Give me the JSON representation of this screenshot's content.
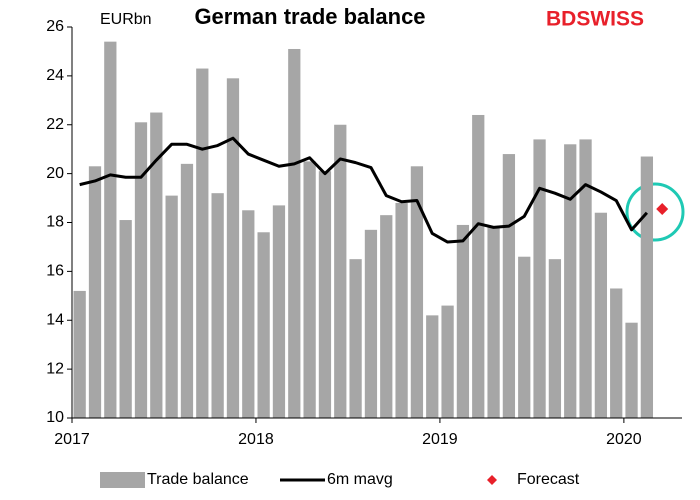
{
  "chart_data": {
    "type": "bar",
    "title": "German trade balance",
    "unit_label": "EURbn",
    "logo": "BDSWISS",
    "categories": [
      "2017",
      null,
      null,
      null,
      null,
      null,
      null,
      null,
      null,
      null,
      null,
      null,
      "2018",
      null,
      null,
      null,
      null,
      null,
      null,
      null,
      null,
      null,
      null,
      null,
      "2019",
      null,
      null,
      null,
      null,
      null,
      null,
      null,
      null,
      null,
      null,
      null,
      "2020",
      null,
      null
    ],
    "series": [
      {
        "name": "Trade balance",
        "type": "bar",
        "color": "#a6a6a6",
        "values": [
          15.2,
          20.3,
          25.4,
          18.1,
          22.1,
          22.5,
          19.1,
          20.4,
          24.3,
          19.2,
          23.9,
          18.5,
          17.6,
          18.7,
          25.1,
          20.5,
          20.1,
          22.0,
          16.5,
          17.7,
          18.3,
          18.8,
          20.3,
          14.2,
          14.6,
          17.9,
          22.4,
          17.8,
          20.8,
          16.6,
          21.4,
          16.5,
          21.2,
          21.4,
          18.4,
          15.3,
          13.9,
          20.7,
          null
        ]
      },
      {
        "name": "6m mavg",
        "type": "line",
        "color": "#000000",
        "values": [
          19.55,
          19.7,
          19.95,
          19.85,
          19.85,
          20.55,
          21.2,
          21.2,
          21.0,
          21.15,
          21.45,
          20.8,
          20.55,
          20.3,
          20.4,
          20.65,
          20.0,
          20.6,
          20.45,
          20.25,
          19.1,
          18.85,
          18.9,
          17.55,
          17.2,
          17.25,
          17.95,
          17.8,
          17.85,
          18.25,
          19.4,
          19.2,
          18.95,
          19.55,
          19.25,
          18.9,
          17.7,
          18.4,
          null
        ]
      },
      {
        "name": "Forecast",
        "type": "marker",
        "color": "#e8202a",
        "values": [
          null,
          null,
          null,
          null,
          null,
          null,
          null,
          null,
          null,
          null,
          null,
          null,
          null,
          null,
          null,
          null,
          null,
          null,
          null,
          null,
          null,
          null,
          null,
          null,
          null,
          null,
          null,
          null,
          null,
          null,
          null,
          null,
          null,
          null,
          null,
          null,
          null,
          null,
          18.55
        ]
      }
    ],
    "ylim": [
      10,
      26
    ],
    "yticks": [
      10,
      12,
      14,
      16,
      18,
      20,
      22,
      24,
      26
    ],
    "grid": false,
    "legend": "bottom"
  }
}
